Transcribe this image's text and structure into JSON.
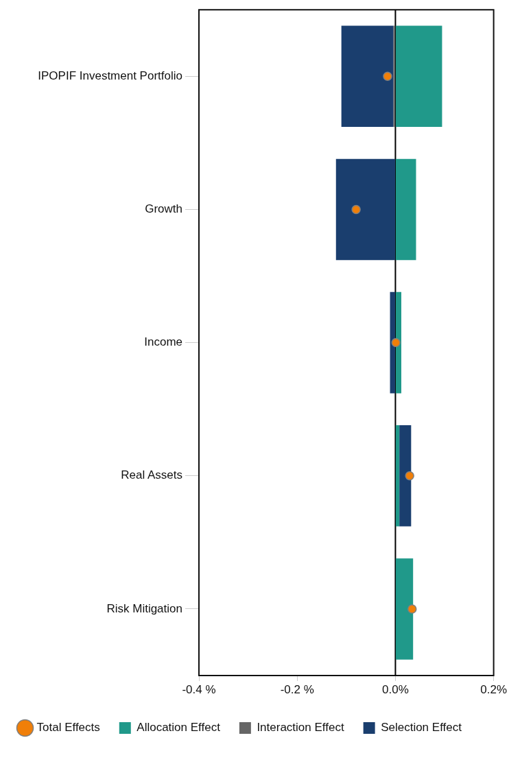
{
  "chart_data": {
    "type": "bar",
    "orientation": "horizontal",
    "stacked": true,
    "categories": [
      "IPOPIF Investment Portfolio",
      "Growth",
      "Income",
      "Real Assets",
      "Risk Mitigation"
    ],
    "series": [
      {
        "name": "Allocation Effect",
        "color": "#20998a",
        "values": [
          0.095,
          0.042,
          0.012,
          0.008,
          0.036
        ]
      },
      {
        "name": "Interaction Effect",
        "color": "#666666",
        "values": [
          -0.004,
          null,
          0,
          null,
          null
        ]
      },
      {
        "name": "Selection Effect",
        "color": "#1a3e6e",
        "values": [
          -0.106,
          -0.121,
          -0.011,
          0.024,
          0
        ]
      },
      {
        "name": "Total Effects",
        "type": "scatter",
        "marker": "circle",
        "color": "#f07f09",
        "values": [
          -0.016,
          -0.08,
          0.001,
          0.029,
          0.034
        ]
      }
    ],
    "xlim": [
      -0.4,
      0.2
    ],
    "xticks": [
      {
        "value": -0.4,
        "label": "-0.4 %"
      },
      {
        "value": -0.2,
        "label": "-0.2 %"
      },
      {
        "value": 0,
        "label": "0.0%"
      },
      {
        "value": 0.2,
        "label": "0.2%"
      }
    ],
    "ref_lines": [
      {
        "axis": "x",
        "value": 0,
        "color": "#000000"
      }
    ],
    "grid": false,
    "legend": "bottom"
  }
}
